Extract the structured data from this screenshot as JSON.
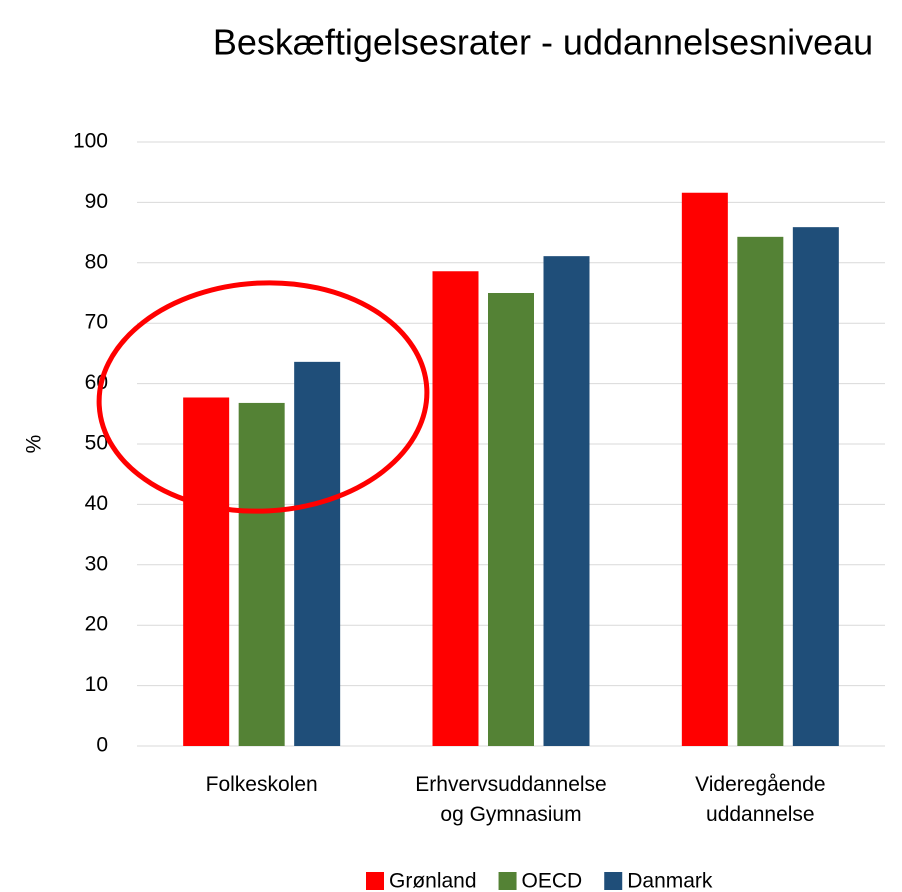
{
  "chart_data": {
    "type": "bar",
    "title": "Beskæftigelsesrater - uddannelsesniveau",
    "y_label": "%",
    "categories": [
      "Folkeskolen",
      "Erhvervsuddannelse og Gymnasium",
      "Videregående uddannelse"
    ],
    "series": [
      {
        "name": "Grønland",
        "color": "#ff0000",
        "values": [
          57.7,
          78.6,
          91.6
        ]
      },
      {
        "name": "OECD",
        "color": "#548235",
        "values": [
          56.8,
          75.0,
          84.3
        ]
      },
      {
        "name": "Danmark",
        "color": "#1f4e79",
        "values": [
          63.6,
          81.1,
          85.9
        ]
      }
    ],
    "ylim": [
      0,
      100
    ],
    "yticks": [
      0,
      10,
      20,
      30,
      40,
      50,
      60,
      70,
      80,
      90,
      100
    ],
    "grid": true,
    "legend": "bottom"
  }
}
